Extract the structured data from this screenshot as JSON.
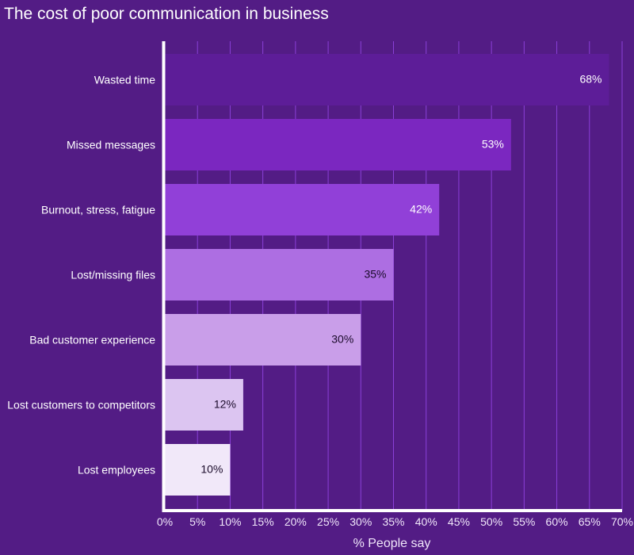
{
  "chart_data": {
    "type": "bar",
    "orientation": "horizontal",
    "title": "The cost of poor communication in business",
    "xlabel": "% People say",
    "ylabel": "",
    "xlim": [
      0,
      70
    ],
    "x_ticks": [
      "0%",
      "5%",
      "10%",
      "15%",
      "20%",
      "25%",
      "30%",
      "35%",
      "40%",
      "45%",
      "50%",
      "55%",
      "60%",
      "65%",
      "70%"
    ],
    "grid": "vertical",
    "categories": [
      "Wasted time",
      "Missed messages",
      "Burnout, stress, fatigue",
      "Lost/missing files",
      "Bad customer experience",
      "Lost customers to competitors",
      "Lost employees"
    ],
    "values": [
      68,
      53,
      42,
      35,
      30,
      12,
      10
    ],
    "data_labels": [
      "68%",
      "53%",
      "42%",
      "35%",
      "30%",
      "12%",
      "10%"
    ],
    "bar_colors": [
      "#5d1d98",
      "#7b27c0",
      "#9140d8",
      "#ad6ee2",
      "#c99ee9",
      "#dcc5f1",
      "#f1e8f9"
    ],
    "label_colors": [
      "#ffffff",
      "#ffffff",
      "#ffffff",
      "#1a0a2a",
      "#1a0a2a",
      "#1a0a2a",
      "#1a0a2a"
    ],
    "background_color": "#531c85",
    "gridline_color": "#8b3fd8"
  }
}
